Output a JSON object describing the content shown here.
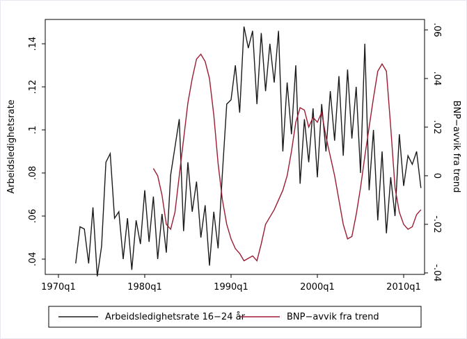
{
  "chart_data": {
    "type": "line",
    "x": [
      1972,
      1972.5,
      1973,
      1973.5,
      1974,
      1974.5,
      1975,
      1975.5,
      1976,
      1976.5,
      1977,
      1977.5,
      1978,
      1978.5,
      1979,
      1979.5,
      1980,
      1980.5,
      1981,
      1981.5,
      1982,
      1982.5,
      1983,
      1983.5,
      1984,
      1984.5,
      1985,
      1985.5,
      1986,
      1986.5,
      1987,
      1987.5,
      1988,
      1988.5,
      1989,
      1989.5,
      1990,
      1990.5,
      1991,
      1991.5,
      1992,
      1992.5,
      1993,
      1993.5,
      1994,
      1994.5,
      1995,
      1995.5,
      1996,
      1996.5,
      1997,
      1997.5,
      1998,
      1998.5,
      1999,
      1999.5,
      2000,
      2000.5,
      2001,
      2001.5,
      2002,
      2002.5,
      2003,
      2003.5,
      2004,
      2004.5,
      2005,
      2005.5,
      2006,
      2006.5,
      2007,
      2007.5,
      2008,
      2008.5,
      2009,
      2009.5,
      2010,
      2010.5,
      2011,
      2011.5,
      2012
    ],
    "xlim": [
      1968.47,
      2012.42
    ],
    "xticks": [
      {
        "value": 1970,
        "label": "1970q1"
      },
      {
        "value": 1980,
        "label": "1980q1"
      },
      {
        "value": 1990,
        "label": "1990q1"
      },
      {
        "value": 2000,
        "label": "2000q1"
      },
      {
        "value": 2010,
        "label": "2010q1"
      }
    ],
    "y_label": "Arbeidsledighetsrate",
    "y2_label": "BNP−avvik fra trend",
    "ylim": [
      0.0329,
      0.1513
    ],
    "yticks": [
      {
        "value": 0.04,
        "label": ".04"
      },
      {
        "value": 0.06,
        "label": ".06"
      },
      {
        "value": 0.08,
        "label": ".08"
      },
      {
        "value": 0.1,
        "label": ".1"
      },
      {
        "value": 0.12,
        "label": ".12"
      },
      {
        "value": 0.14,
        "label": ".14"
      }
    ],
    "y2lim": [
      -0.0406,
      0.0643
    ],
    "y2ticks": [
      {
        "value": -0.04,
        "label": "-.04"
      },
      {
        "value": -0.02,
        "label": "-.02"
      },
      {
        "value": 0,
        "label": "0"
      },
      {
        "value": 0.02,
        "label": ".02"
      },
      {
        "value": 0.04,
        "label": ".04"
      },
      {
        "value": 0.06,
        "label": ".06"
      }
    ],
    "series": [
      {
        "name": "Arbeidsledighetsrate 16−24 år",
        "color": "#1a1a1a",
        "values": [
          0.038,
          0.055,
          0.054,
          0.038,
          0.064,
          0.032,
          0.046,
          0.085,
          0.089,
          0.059,
          0.062,
          0.04,
          0.059,
          0.035,
          0.058,
          0.047,
          0.072,
          0.048,
          0.069,
          0.04,
          0.061,
          0.043,
          0.079,
          0.092,
          0.105,
          0.053,
          0.085,
          0.062,
          0.076,
          0.05,
          0.065,
          0.037,
          0.062,
          0.045,
          0.08,
          0.112,
          0.114,
          0.13,
          0.108,
          0.148,
          0.138,
          0.146,
          0.112,
          0.145,
          0.118,
          0.14,
          0.122,
          0.146,
          0.09,
          0.122,
          0.098,
          0.13,
          0.075,
          0.105,
          0.085,
          0.11,
          0.078,
          0.112,
          0.09,
          0.118,
          0.095,
          0.125,
          0.088,
          0.128,
          0.096,
          0.12,
          0.08,
          0.14,
          0.072,
          0.1,
          0.058,
          0.09,
          0.052,
          0.078,
          0.06,
          0.098,
          0.074,
          0.088,
          0.084,
          0.09,
          0.073
        ]
      },
      {
        "name": "BNP−avvik fra trend",
        "color": "#9b1b30",
        "axis": "y2",
        "values": [
          null,
          null,
          null,
          null,
          null,
          null,
          null,
          null,
          null,
          null,
          null,
          null,
          null,
          null,
          null,
          null,
          null,
          null,
          0.003,
          0.0,
          -0.008,
          -0.02,
          -0.022,
          -0.015,
          0.0,
          0.015,
          0.03,
          0.04,
          0.048,
          0.05,
          0.047,
          0.04,
          0.025,
          0.005,
          -0.01,
          -0.02,
          -0.026,
          -0.03,
          -0.032,
          -0.035,
          -0.034,
          -0.033,
          -0.035,
          -0.028,
          -0.02,
          -0.017,
          -0.014,
          -0.01,
          -0.006,
          0.0,
          0.01,
          0.022,
          0.028,
          0.027,
          0.02,
          0.024,
          0.022,
          0.026,
          0.016,
          0.008,
          0.0,
          -0.01,
          -0.02,
          -0.026,
          -0.025,
          -0.016,
          -0.005,
          0.008,
          0.02,
          0.032,
          0.043,
          0.046,
          0.043,
          0.02,
          -0.005,
          -0.015,
          -0.02,
          -0.022,
          -0.021,
          -0.016,
          -0.014
        ]
      }
    ]
  }
}
